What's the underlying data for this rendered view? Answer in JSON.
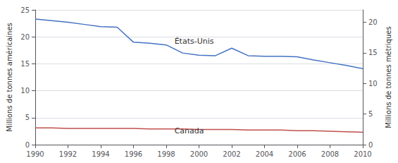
{
  "chart_data": {
    "type": "line",
    "x": [
      1990,
      1991,
      1992,
      1993,
      1994,
      1995,
      1996,
      1997,
      1998,
      1999,
      2000,
      2001,
      2002,
      2003,
      2004,
      2005,
      2006,
      2007,
      2008,
      2009,
      2010
    ],
    "series": [
      {
        "name": "États-Unis",
        "color": "#4472C4",
        "values": [
          23.3,
          23.0,
          22.7,
          22.3,
          21.9,
          21.8,
          19.0,
          18.8,
          18.5,
          17.0,
          16.6,
          16.5,
          17.9,
          16.5,
          16.4,
          16.4,
          16.3,
          15.7,
          15.2,
          14.7,
          14.1
        ]
      },
      {
        "name": "Canada",
        "color": "#C0504D",
        "values": [
          3.1,
          3.1,
          3.0,
          3.0,
          3.0,
          3.0,
          3.0,
          2.9,
          2.9,
          2.9,
          2.8,
          2.8,
          2.8,
          2.7,
          2.7,
          2.7,
          2.6,
          2.6,
          2.5,
          2.4,
          2.3
        ]
      }
    ],
    "xlim": [
      1990,
      2010
    ],
    "xticks": [
      1990,
      1992,
      1994,
      1996,
      1998,
      2000,
      2002,
      2004,
      2006,
      2008,
      2010
    ],
    "ylim": [
      0,
      25
    ],
    "yticks": [
      0,
      5,
      10,
      15,
      20,
      25
    ],
    "y2lim": [
      0,
      22.0
    ],
    "y2ticks": [
      0,
      5,
      10,
      15,
      20
    ],
    "ylabel": "Millions de tonnes américaines",
    "y2label": "Millions de tonnes métriques",
    "grid": true,
    "annotations": [
      {
        "text": "États-Unis",
        "x": 1998.5,
        "y": 19.2
      },
      {
        "text": "Canada",
        "x": 1998.5,
        "y": 2.55
      }
    ]
  }
}
